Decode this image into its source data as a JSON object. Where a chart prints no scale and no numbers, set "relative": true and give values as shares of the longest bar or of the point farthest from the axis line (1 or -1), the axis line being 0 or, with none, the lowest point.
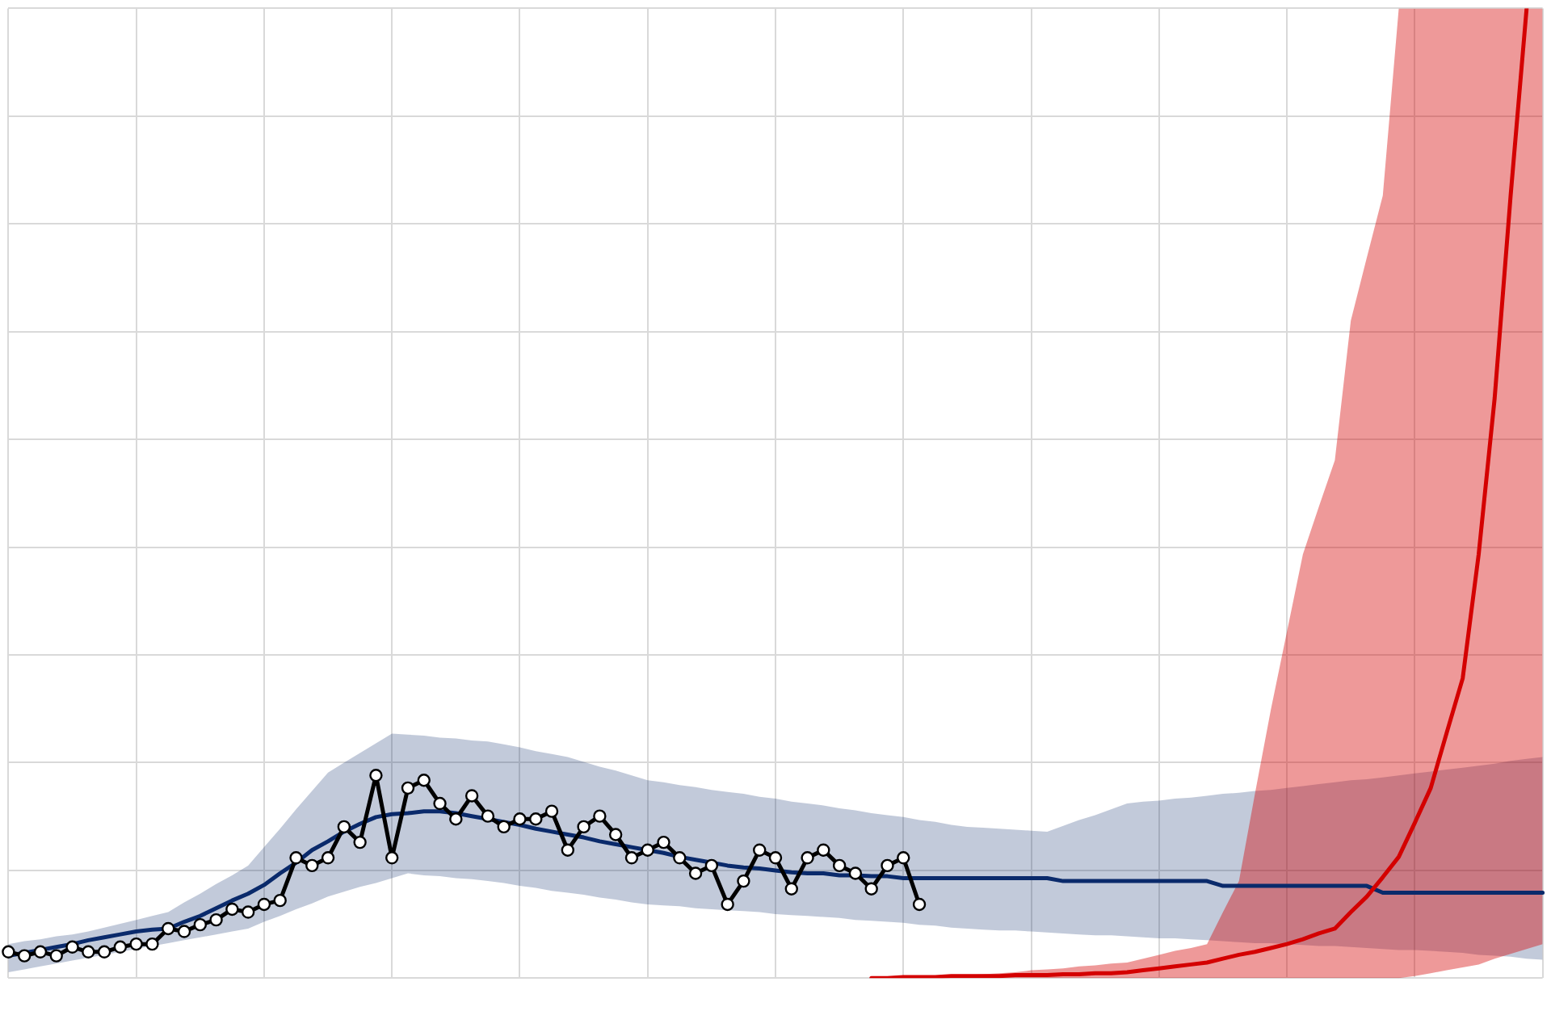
{
  "chart_data": {
    "type": "line",
    "relative": true,
    "grid": true,
    "categories": [
      null,
      null,
      null,
      null,
      null,
      null,
      null,
      null,
      null,
      null,
      null,
      null,
      null,
      null,
      null,
      null,
      null,
      null,
      null,
      null,
      null,
      null,
      null,
      null,
      null,
      null,
      null,
      null,
      null,
      null,
      null,
      null,
      null,
      null,
      null,
      null,
      null,
      null,
      null,
      null,
      null,
      null,
      null,
      null,
      null,
      null,
      null,
      null,
      null,
      null,
      null,
      null,
      null,
      null,
      null,
      null,
      null,
      null,
      null,
      null,
      null,
      null,
      null,
      null,
      null,
      null,
      null,
      null,
      null,
      null,
      null,
      null,
      null,
      null,
      null,
      null,
      null,
      null,
      null,
      null,
      null,
      null,
      null,
      null,
      null,
      null,
      null,
      null,
      null,
      null,
      null,
      null,
      null,
      null,
      null,
      null,
      null
    ],
    "series": [
      {
        "color": "#0a2a6b",
        "marker": "none",
        "line_style": "solid",
        "values": [
          0.023,
          0.026,
          0.029,
          0.032,
          0.035,
          0.039,
          0.042,
          0.045,
          0.048,
          0.05,
          0.051,
          0.058,
          0.064,
          0.072,
          0.08,
          0.087,
          0.096,
          0.108,
          0.119,
          0.132,
          0.141,
          0.151,
          0.159,
          0.166,
          0.169,
          0.17,
          0.172,
          0.172,
          0.17,
          0.167,
          0.164,
          0.161,
          0.158,
          0.154,
          0.151,
          0.148,
          0.145,
          0.141,
          0.138,
          0.135,
          0.132,
          0.129,
          0.125,
          0.122,
          0.119,
          0.116,
          0.114,
          0.113,
          0.111,
          0.109,
          0.108,
          0.108,
          0.106,
          0.106,
          0.105,
          0.105,
          0.103,
          0.103,
          0.103,
          0.103,
          0.103,
          0.103,
          0.103,
          0.103,
          0.103,
          0.103,
          0.1,
          0.1,
          0.1,
          0.1,
          0.1,
          0.1,
          0.1,
          0.1,
          0.1,
          0.1,
          0.095,
          0.095,
          0.095,
          0.095,
          0.095,
          0.095,
          0.095,
          0.095,
          0.095,
          0.095,
          0.088,
          0.088,
          0.088,
          0.088,
          0.088,
          0.088,
          0.088,
          0.088,
          0.088,
          0.088,
          0.088
        ],
        "upper": [
          0.035,
          0.038,
          0.04,
          0.043,
          0.045,
          0.048,
          0.052,
          0.056,
          0.06,
          0.064,
          0.068,
          0.078,
          0.087,
          0.097,
          0.106,
          0.116,
          0.135,
          0.154,
          0.174,
          0.193,
          0.212,
          0.222,
          0.232,
          0.242,
          0.252,
          0.251,
          0.25,
          0.248,
          0.247,
          0.245,
          0.244,
          0.241,
          0.238,
          0.234,
          0.231,
          0.228,
          0.223,
          0.218,
          0.214,
          0.209,
          0.204,
          0.202,
          0.199,
          0.197,
          0.194,
          0.192,
          0.19,
          0.187,
          0.185,
          0.182,
          0.18,
          0.178,
          0.175,
          0.173,
          0.17,
          0.168,
          0.166,
          0.163,
          0.161,
          0.158,
          0.156,
          0.155,
          0.154,
          0.153,
          0.152,
          0.151,
          0.157,
          0.163,
          0.168,
          0.174,
          0.18,
          0.182,
          0.183,
          0.185,
          0.186,
          0.188,
          0.19,
          0.191,
          0.193,
          0.194,
          0.196,
          0.198,
          0.2,
          0.202,
          0.204,
          0.205,
          0.207,
          0.209,
          0.211,
          0.213,
          0.215,
          0.217,
          0.219,
          0.221,
          0.224,
          0.226,
          0.228
        ],
        "lower": [
          0.006,
          0.009,
          0.012,
          0.015,
          0.018,
          0.021,
          0.024,
          0.027,
          0.03,
          0.033,
          0.036,
          0.039,
          0.042,
          0.045,
          0.048,
          0.051,
          0.058,
          0.064,
          0.071,
          0.077,
          0.084,
          0.089,
          0.094,
          0.098,
          0.103,
          0.108,
          0.106,
          0.105,
          0.103,
          0.102,
          0.1,
          0.098,
          0.095,
          0.093,
          0.09,
          0.088,
          0.086,
          0.083,
          0.081,
          0.078,
          0.076,
          0.075,
          0.074,
          0.072,
          0.071,
          0.07,
          0.069,
          0.068,
          0.066,
          0.065,
          0.064,
          0.063,
          0.062,
          0.06,
          0.059,
          0.058,
          0.057,
          0.055,
          0.054,
          0.052,
          0.051,
          0.05,
          0.049,
          0.049,
          0.048,
          0.047,
          0.046,
          0.045,
          0.044,
          0.044,
          0.043,
          0.042,
          0.041,
          0.041,
          0.04,
          0.039,
          0.038,
          0.037,
          0.036,
          0.036,
          0.035,
          0.034,
          0.033,
          0.033,
          0.032,
          0.031,
          0.03,
          0.029,
          0.029,
          0.028,
          0.027,
          0.026,
          0.024,
          0.023,
          0.022,
          0.02,
          0.019
        ]
      },
      {
        "color": "#d40000",
        "marker": "none",
        "line_style": "solid",
        "values": [
          null,
          null,
          null,
          null,
          null,
          null,
          null,
          null,
          null,
          null,
          null,
          null,
          null,
          null,
          null,
          null,
          null,
          null,
          null,
          null,
          null,
          null,
          null,
          null,
          null,
          null,
          null,
          null,
          null,
          null,
          null,
          null,
          null,
          null,
          null,
          null,
          null,
          null,
          null,
          null,
          null,
          null,
          null,
          null,
          null,
          null,
          null,
          null,
          null,
          null,
          null,
          null,
          null,
          null,
          0,
          0,
          0.001,
          0.001,
          0.001,
          0.002,
          0.002,
          0.002,
          0.002,
          0.003,
          0.003,
          0.003,
          0.004,
          0.004,
          0.005,
          0.005,
          0.006,
          0.008,
          0.01,
          0.012,
          0.014,
          0.016,
          0.02,
          0.024,
          0.027,
          0.031,
          0.035,
          0.04,
          0.046,
          0.051,
          0.068,
          0.084,
          0.104,
          0.125,
          0.16,
          0.196,
          0.253,
          0.309,
          0.437,
          0.598,
          0.807,
          1,
          null
        ],
        "upper": [
          null,
          null,
          null,
          null,
          null,
          null,
          null,
          null,
          null,
          null,
          null,
          null,
          null,
          null,
          null,
          null,
          null,
          null,
          null,
          null,
          null,
          null,
          null,
          null,
          null,
          null,
          null,
          null,
          null,
          null,
          null,
          null,
          null,
          null,
          null,
          null,
          null,
          null,
          null,
          null,
          null,
          null,
          null,
          null,
          null,
          null,
          null,
          null,
          null,
          null,
          null,
          null,
          null,
          null,
          0,
          0.001,
          0.001,
          0.002,
          0.002,
          0.003,
          0.003,
          0.004,
          0.005,
          0.006,
          0.008,
          0.009,
          0.01,
          0.012,
          0.013,
          0.015,
          0.016,
          0.02,
          0.024,
          0.028,
          0.031,
          0.035,
          0.068,
          0.1,
          0.19,
          0.277,
          0.357,
          0.437,
          0.486,
          0.534,
          0.678,
          0.743,
          0.807,
          1,
          1,
          1,
          1,
          1,
          1,
          1,
          1,
          1,
          1
        ],
        "lower": [
          null,
          null,
          null,
          null,
          null,
          null,
          null,
          null,
          null,
          null,
          null,
          null,
          null,
          null,
          null,
          null,
          null,
          null,
          null,
          null,
          null,
          null,
          null,
          null,
          null,
          null,
          null,
          null,
          null,
          null,
          null,
          null,
          null,
          null,
          null,
          null,
          null,
          null,
          null,
          null,
          null,
          null,
          null,
          null,
          null,
          null,
          null,
          null,
          null,
          null,
          null,
          null,
          null,
          null,
          0,
          0,
          0,
          0,
          0,
          0,
          0,
          0,
          0,
          0,
          0,
          0,
          0,
          0,
          0,
          0,
          0,
          0,
          0,
          0,
          0,
          0,
          0,
          0,
          0,
          0,
          0,
          0,
          0,
          0,
          0,
          0,
          0,
          0,
          0.002,
          0.005,
          0.008,
          0.011,
          0.014,
          0.02,
          0.025,
          0.03,
          0.035
        ]
      },
      {
        "color": "#000000",
        "marker": "circle",
        "line_style": "solid",
        "values": [
          0.027,
          0.023,
          0.027,
          0.023,
          0.032,
          0.027,
          0.027,
          0.032,
          0.035,
          0.035,
          0.051,
          0.048,
          0.055,
          0.06,
          0.071,
          0.068,
          0.076,
          0.08,
          0.124,
          0.116,
          0.124,
          0.156,
          0.14,
          0.209,
          0.124,
          0.196,
          0.204,
          0.18,
          0.164,
          0.188,
          0.167,
          0.156,
          0.164,
          0.164,
          0.172,
          0.132,
          0.156,
          0.167,
          0.148,
          0.124,
          0.132,
          0.14,
          0.124,
          0.108,
          0.116,
          0.076,
          0.1,
          0.132,
          0.124,
          0.092,
          0.124,
          0.132,
          0.116,
          0.108,
          0.092,
          0.116,
          0.124,
          0.076,
          null,
          null,
          null,
          null,
          null,
          null,
          null,
          null,
          null,
          null,
          null,
          null,
          null,
          null,
          null,
          null,
          null,
          null,
          null,
          null,
          null,
          null,
          null,
          null,
          null,
          null,
          null,
          null,
          null,
          null,
          null,
          null,
          null,
          null,
          null,
          null,
          null,
          null,
          null
        ]
      }
    ]
  }
}
